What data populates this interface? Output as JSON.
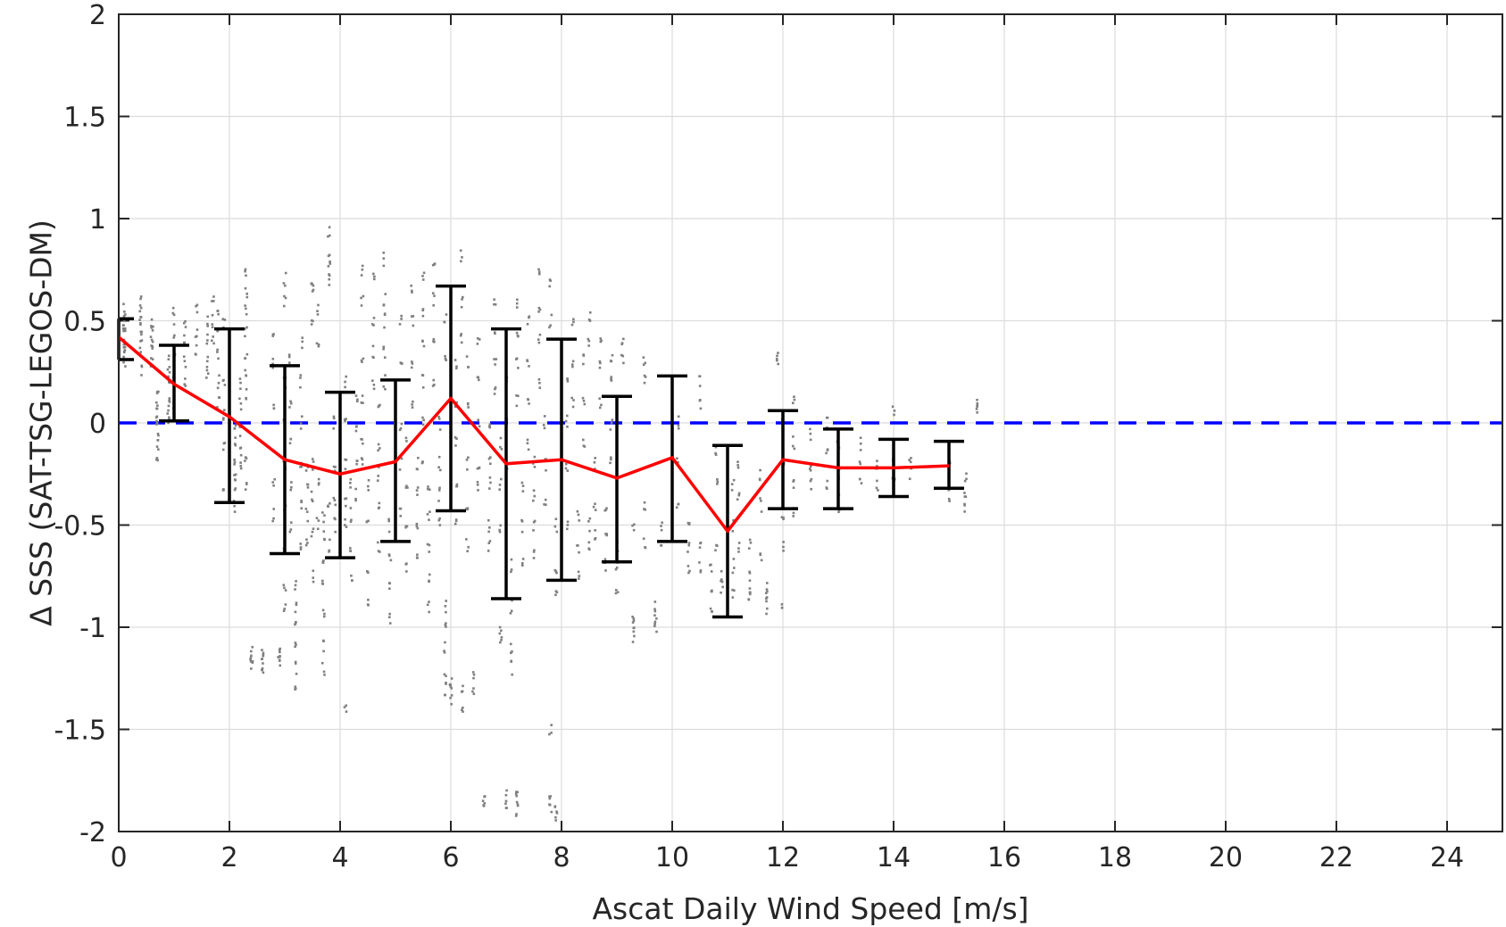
{
  "chart_data": {
    "type": "scatter",
    "title": "",
    "xlabel": "Ascat Daily Wind Speed [m/s]",
    "ylabel": "Δ SSS (SAT-TSG-LEGOS-DM)",
    "xlim": [
      0,
      25
    ],
    "ylim": [
      -2,
      2
    ],
    "x_ticks": [
      0,
      2,
      4,
      6,
      8,
      10,
      12,
      14,
      16,
      18,
      20,
      22,
      24
    ],
    "y_ticks": [
      2,
      1.5,
      1,
      0.5,
      0,
      -0.5,
      -1,
      -1.5,
      -2
    ],
    "y_tick_labels": [
      "2",
      "1.5",
      "1",
      "0.5",
      "0",
      "-0.5",
      "-1",
      "-1.5",
      "-2"
    ],
    "grid": true,
    "reference_line": {
      "y": 0,
      "style": "dashed",
      "color": "#0000ff"
    },
    "mean_line": {
      "color": "#ff0000",
      "x": [
        0,
        1,
        2,
        3,
        4,
        5,
        6,
        7,
        8,
        9,
        10,
        11,
        12,
        13,
        14,
        15
      ],
      "y": [
        0.42,
        0.19,
        0.03,
        -0.18,
        -0.25,
        -0.19,
        0.12,
        -0.2,
        -0.18,
        -0.27,
        -0.17,
        -0.53,
        -0.18,
        -0.22,
        -0.22,
        -0.21
      ]
    },
    "error_bars": {
      "color": "#000000",
      "x": [
        0,
        1,
        2,
        3,
        4,
        5,
        6,
        7,
        8,
        9,
        10,
        11,
        12,
        13,
        14,
        15
      ],
      "low": [
        0.31,
        0.01,
        -0.39,
        -0.64,
        -0.66,
        -0.58,
        -0.43,
        -0.86,
        -0.77,
        -0.68,
        -0.58,
        -0.95,
        -0.42,
        -0.42,
        -0.36,
        -0.32
      ],
      "high": [
        0.51,
        0.38,
        0.46,
        0.28,
        0.15,
        0.21,
        0.67,
        0.46,
        0.41,
        0.13,
        0.23,
        -0.11,
        0.06,
        -0.03,
        -0.08,
        -0.09
      ]
    },
    "scatter_color": "#808080",
    "scatter_clusters": [
      {
        "x": 0.1,
        "y": [
          0.35,
          0.4,
          0.45,
          0.5,
          0.55,
          0.3,
          0.38,
          0.48
        ]
      },
      {
        "x": 0.4,
        "y": [
          0.6,
          0.55,
          0.45,
          0.35,
          0.25,
          0.5,
          0.42
        ]
      },
      {
        "x": 0.6,
        "y": [
          0.5,
          0.4,
          0.35,
          0.3,
          0.45
        ]
      },
      {
        "x": 0.7,
        "y": [
          0.1,
          0.05,
          0.0,
          -0.05,
          -0.1,
          -0.15,
          0.15
        ]
      },
      {
        "x": 0.9,
        "y": [
          0.3,
          0.2,
          0.1,
          0.05,
          0.0,
          0.25
        ]
      },
      {
        "x": 1.0,
        "y": [
          0.55,
          0.45,
          0.35,
          0.2,
          0.1
        ]
      },
      {
        "x": 1.2,
        "y": [
          0.5,
          0.4,
          0.3,
          0.2
        ]
      },
      {
        "x": 1.4,
        "y": [
          0.55,
          0.45,
          0.35
        ]
      },
      {
        "x": 1.6,
        "y": [
          0.5,
          0.4,
          0.3,
          0.25
        ]
      },
      {
        "x": 1.7,
        "y": [
          0.6,
          0.5,
          0.4
        ]
      },
      {
        "x": 1.8,
        "y": [
          0.55,
          0.45,
          0.35,
          0.2,
          0.1
        ]
      },
      {
        "x": 1.9,
        "y": [
          0.5,
          0.2,
          0.05,
          -0.1,
          -0.3
        ]
      },
      {
        "x": 2.1,
        "y": [
          0.0,
          -0.1,
          -0.2,
          -0.25,
          -0.3,
          -0.4
        ]
      },
      {
        "x": 2.2,
        "y": [
          0.2,
          0.1,
          -0.05,
          -0.15,
          -0.2
        ]
      },
      {
        "x": 2.3,
        "y": [
          0.75,
          0.65,
          0.55,
          0.45,
          0.35,
          0.25,
          0.15,
          -0.2,
          -0.3
        ]
      },
      {
        "x": 2.4,
        "y": [
          -1.13,
          -1.16,
          -1.19
        ]
      },
      {
        "x": 2.6,
        "y": [
          -1.13,
          -1.16,
          -1.19,
          -1.2
        ]
      },
      {
        "x": 2.8,
        "y": [
          0.45,
          0.3,
          0.1,
          -0.3,
          -0.45
        ]
      },
      {
        "x": 2.9,
        "y": [
          -1.12,
          -1.15,
          -1.18
        ]
      },
      {
        "x": 3.0,
        "y": [
          0.7,
          0.6,
          0.2,
          0.0,
          -0.2,
          -0.4,
          -0.6,
          -0.8,
          -0.9
        ]
      },
      {
        "x": 3.1,
        "y": [
          0.3,
          0.1,
          -0.1,
          -0.3,
          -0.5
        ]
      },
      {
        "x": 3.2,
        "y": [
          -0.8,
          -0.9,
          -1.0,
          -1.1,
          -1.2,
          -1.3
        ]
      },
      {
        "x": 3.3,
        "y": [
          0.4,
          0.2,
          0.0,
          -0.2,
          -0.4,
          -0.6
        ]
      },
      {
        "x": 3.4,
        "y": [
          -0.2,
          -0.3,
          -0.45,
          -0.6
        ]
      },
      {
        "x": 3.5,
        "y": [
          0.7,
          0.65,
          0.5,
          -0.2,
          -0.35,
          -0.55,
          -0.75
        ]
      },
      {
        "x": 3.6,
        "y": [
          0.55,
          0.4,
          -0.3,
          -0.5
        ]
      },
      {
        "x": 3.7,
        "y": [
          -0.45,
          -0.55,
          -0.65,
          -0.8,
          -0.95,
          -1.1,
          -1.2
        ]
      },
      {
        "x": 3.8,
        "y": [
          0.94,
          0.8,
          0.75,
          0.7,
          -0.4,
          -0.6
        ]
      },
      {
        "x": 3.9,
        "y": [
          0.0,
          -0.2,
          -0.4,
          -0.5
        ]
      },
      {
        "x": 4.1,
        "y": [
          0.2,
          0.0,
          -0.2,
          -0.4,
          -0.5,
          -1.39
        ]
      },
      {
        "x": 4.2,
        "y": [
          -0.3,
          -0.45,
          -0.6,
          -0.75
        ]
      },
      {
        "x": 4.3,
        "y": [
          0.1,
          -0.05,
          -0.2,
          -0.35
        ]
      },
      {
        "x": 4.4,
        "y": [
          0.75,
          0.6,
          0.3,
          0.1,
          -0.1,
          -0.2
        ]
      },
      {
        "x": 4.5,
        "y": [
          -0.3,
          -0.5,
          -0.7,
          -0.9
        ]
      },
      {
        "x": 4.6,
        "y": [
          0.7,
          0.5,
          0.35,
          0.2
        ]
      },
      {
        "x": 4.7,
        "y": [
          0.1,
          -0.1,
          -0.25,
          -0.4,
          -0.6
        ]
      },
      {
        "x": 4.8,
        "y": [
          0.8,
          0.6,
          0.5,
          0.35,
          0.2
        ]
      },
      {
        "x": 4.9,
        "y": [
          -0.5,
          -0.65,
          -0.8,
          -0.95
        ]
      },
      {
        "x": 5.1,
        "y": [
          0.5,
          0.3,
          0.0,
          -0.2,
          -0.45
        ]
      },
      {
        "x": 5.2,
        "y": [
          -0.1,
          -0.3,
          -0.5,
          -0.7
        ]
      },
      {
        "x": 5.3,
        "y": [
          0.65,
          0.5,
          0.3,
          0.1
        ]
      },
      {
        "x": 5.4,
        "y": [
          -0.2,
          -0.35,
          -0.5,
          -0.65
        ]
      },
      {
        "x": 5.5,
        "y": [
          0.7,
          0.55,
          0.4,
          0.2,
          0.0,
          -0.2
        ]
      },
      {
        "x": 5.6,
        "y": [
          -0.3,
          -0.45,
          -0.6,
          -0.75,
          -0.9
        ]
      },
      {
        "x": 5.7,
        "y": [
          0.78,
          0.6,
          0.4,
          0.2
        ]
      },
      {
        "x": 5.8,
        "y": [
          0.0,
          -0.2,
          -0.35,
          -0.5
        ]
      },
      {
        "x": 5.9,
        "y": [
          0.5,
          0.3,
          -0.9,
          -1.0,
          -1.1,
          -1.25,
          -1.3
        ]
      },
      {
        "x": 6.0,
        "y": [
          -1.3,
          -1.35,
          -1.28
        ]
      },
      {
        "x": 6.1,
        "y": [
          0.3,
          0.1,
          -0.1,
          -0.3,
          -0.5
        ]
      },
      {
        "x": 6.2,
        "y": [
          0.82,
          0.6,
          0.4,
          -1.3,
          -1.42
        ]
      },
      {
        "x": 6.3,
        "y": [
          0.3,
          0.1,
          -0.2,
          -0.4,
          -0.6
        ]
      },
      {
        "x": 6.4,
        "y": [
          -1.25,
          -1.3
        ]
      },
      {
        "x": 6.5,
        "y": [
          0.4,
          0.2,
          0.0,
          -0.2,
          -0.3
        ]
      },
      {
        "x": 6.6,
        "y": [
          -1.85,
          -1.88
        ]
      },
      {
        "x": 6.7,
        "y": [
          0.0,
          -0.2,
          -0.3,
          -0.5,
          -0.6
        ]
      },
      {
        "x": 6.8,
        "y": [
          0.6,
          0.45,
          0.3,
          0.15
        ]
      },
      {
        "x": 6.9,
        "y": [
          -0.1,
          -0.3,
          -0.5,
          -1.0,
          -1.05
        ]
      },
      {
        "x": 7.0,
        "y": [
          0.4,
          0.2,
          0.0,
          -0.2,
          -1.82,
          -1.85
        ]
      },
      {
        "x": 7.1,
        "y": [
          -0.7,
          -0.9,
          -1.1,
          -1.2
        ]
      },
      {
        "x": 7.2,
        "y": [
          0.6,
          0.45,
          0.3,
          0.1,
          -1.8,
          -1.85,
          -1.9
        ]
      },
      {
        "x": 7.3,
        "y": [
          -0.3,
          -0.5,
          -0.7
        ]
      },
      {
        "x": 7.4,
        "y": [
          0.5,
          0.3,
          0.1,
          -0.1
        ]
      },
      {
        "x": 7.5,
        "y": [
          -0.2,
          -0.35,
          -0.5,
          -0.65
        ]
      },
      {
        "x": 7.6,
        "y": [
          0.72,
          0.55,
          0.4,
          0.2
        ]
      },
      {
        "x": 7.7,
        "y": [
          0.0,
          -0.2,
          -0.4
        ]
      },
      {
        "x": 7.8,
        "y": [
          0.7,
          0.5,
          -1.5,
          -1.85,
          -1.9
        ]
      },
      {
        "x": 7.9,
        "y": [
          -0.5,
          -0.7,
          -0.85,
          -1.88,
          -1.92
        ]
      },
      {
        "x": 8.1,
        "y": [
          0.2,
          0.0,
          -0.2,
          -0.5
        ]
      },
      {
        "x": 8.2,
        "y": [
          0.5,
          0.3,
          0.1
        ]
      },
      {
        "x": 8.3,
        "y": [
          -0.45,
          -0.6,
          -0.75
        ]
      },
      {
        "x": 8.4,
        "y": [
          0.3,
          0.1,
          -0.1
        ]
      },
      {
        "x": 8.5,
        "y": [
          0.53,
          0.4,
          -0.5,
          -0.6
        ]
      },
      {
        "x": 8.6,
        "y": [
          -0.2,
          -0.4,
          -0.55
        ]
      },
      {
        "x": 8.7,
        "y": [
          0.4,
          0.3,
          0.1
        ]
      },
      {
        "x": 8.8,
        "y": [
          -0.4,
          -0.55,
          -0.7
        ]
      },
      {
        "x": 8.9,
        "y": [
          0.3,
          0.2,
          0.0,
          -0.2
        ]
      },
      {
        "x": 9.0,
        "y": [
          -0.6,
          -0.7,
          -0.8
        ]
      },
      {
        "x": 9.1,
        "y": [
          0.4,
          0.3
        ]
      },
      {
        "x": 9.3,
        "y": [
          -0.5,
          -0.95,
          -1.0,
          -1.05
        ]
      },
      {
        "x": 9.5,
        "y": [
          0.3,
          0.2,
          -0.4,
          -0.6
        ]
      },
      {
        "x": 9.7,
        "y": [
          -0.9,
          -0.95,
          -1.0
        ]
      },
      {
        "x": 9.8,
        "y": [
          -0.5,
          -0.6
        ]
      },
      {
        "x": 10.1,
        "y": [
          0.0,
          -0.2,
          -0.4
        ]
      },
      {
        "x": 10.3,
        "y": [
          -0.5,
          -0.6,
          -0.7
        ]
      },
      {
        "x": 10.5,
        "y": [
          0.2,
          0.1,
          -0.6,
          -0.7
        ]
      },
      {
        "x": 10.7,
        "y": [
          -0.7,
          -0.8,
          -0.9
        ]
      },
      {
        "x": 10.8,
        "y": [
          -0.15,
          -0.3,
          -0.6
        ]
      },
      {
        "x": 10.9,
        "y": [
          -0.75,
          -0.8
        ]
      },
      {
        "x": 11.1,
        "y": [
          -0.3,
          -0.5,
          -0.7,
          -0.85
        ]
      },
      {
        "x": 11.2,
        "y": [
          -0.2,
          -0.35,
          -0.6
        ]
      },
      {
        "x": 11.4,
        "y": [
          -0.6,
          -0.75,
          -0.8,
          -0.85
        ]
      },
      {
        "x": 11.6,
        "y": [
          -0.25,
          -0.4,
          -0.65
        ]
      },
      {
        "x": 11.7,
        "y": [
          -0.8,
          -0.85,
          -0.9
        ]
      },
      {
        "x": 11.9,
        "y": [
          0.32,
          0.28
        ]
      },
      {
        "x": 12.0,
        "y": [
          0.0,
          -0.2,
          -0.45,
          -0.6,
          -0.88
        ]
      },
      {
        "x": 12.2,
        "y": [
          0.1,
          -0.1,
          -0.3,
          -0.45
        ]
      },
      {
        "x": 12.5,
        "y": [
          -0.05,
          -0.2,
          -0.3
        ]
      },
      {
        "x": 12.8,
        "y": [
          0.0,
          -0.15,
          -0.3
        ]
      },
      {
        "x": 13.0,
        "y": [
          -0.1,
          -0.25,
          -0.35,
          -0.42
        ]
      },
      {
        "x": 13.4,
        "y": [
          -0.1,
          -0.2,
          -0.3
        ]
      },
      {
        "x": 13.7,
        "y": [
          -0.2,
          -0.3
        ]
      },
      {
        "x": 14.0,
        "y": [
          0.05,
          -0.2,
          -0.3
        ]
      },
      {
        "x": 14.3,
        "y": [
          -0.2,
          -0.25
        ]
      },
      {
        "x": 15.0,
        "y": [
          -0.2,
          -0.3,
          -0.35
        ]
      },
      {
        "x": 15.3,
        "y": [
          -0.25,
          -0.35,
          -0.42
        ]
      },
      {
        "x": 15.5,
        "y": [
          0.1,
          0.08
        ]
      }
    ]
  }
}
